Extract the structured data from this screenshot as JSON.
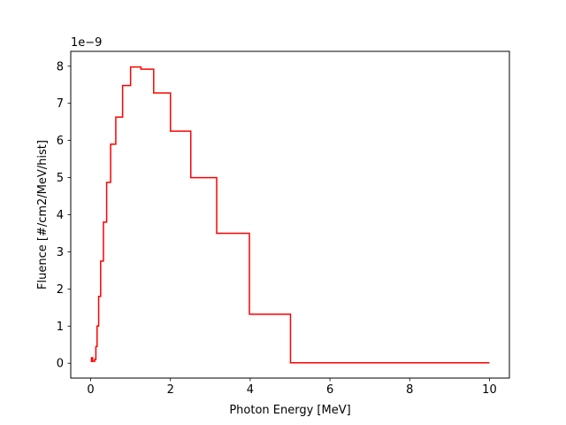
{
  "chart_data": {
    "type": "line",
    "style": "step",
    "title": "",
    "xlabel": "Photon Energy [MeV]",
    "ylabel": "Fluence [#/cm2/MeV/hist]",
    "offset_label": "1e−9",
    "xlim": [
      -0.5,
      10.5
    ],
    "ylim": [
      -0.4,
      8.4
    ],
    "xticks": [
      0,
      2,
      4,
      6,
      8,
      10
    ],
    "yticks": [
      0,
      1,
      2,
      3,
      4,
      5,
      6,
      7,
      8
    ],
    "xtick_labels": [
      "0",
      "2",
      "4",
      "6",
      "8",
      "10"
    ],
    "ytick_labels": [
      "0",
      "1",
      "2",
      "3",
      "4",
      "5",
      "6",
      "7",
      "8"
    ],
    "grid": false,
    "legend": false,
    "series": [
      {
        "color": "#ff0000",
        "bin_edges": [
          0.0,
          0.02,
          0.05,
          0.1,
          0.13,
          0.16,
          0.2,
          0.25,
          0.32,
          0.4,
          0.5,
          0.63,
          0.8,
          1.0,
          1.26,
          1.58,
          2.0,
          2.51,
          3.16,
          3.98,
          5.01,
          6.31,
          10.0
        ],
        "values": [
          0.05,
          0.15,
          0.05,
          0.1,
          0.45,
          1.0,
          1.8,
          2.75,
          3.8,
          4.87,
          5.9,
          6.63,
          7.48,
          7.98,
          7.92,
          7.28,
          6.25,
          5.0,
          3.5,
          1.32,
          0.01,
          0.01
        ]
      }
    ]
  }
}
